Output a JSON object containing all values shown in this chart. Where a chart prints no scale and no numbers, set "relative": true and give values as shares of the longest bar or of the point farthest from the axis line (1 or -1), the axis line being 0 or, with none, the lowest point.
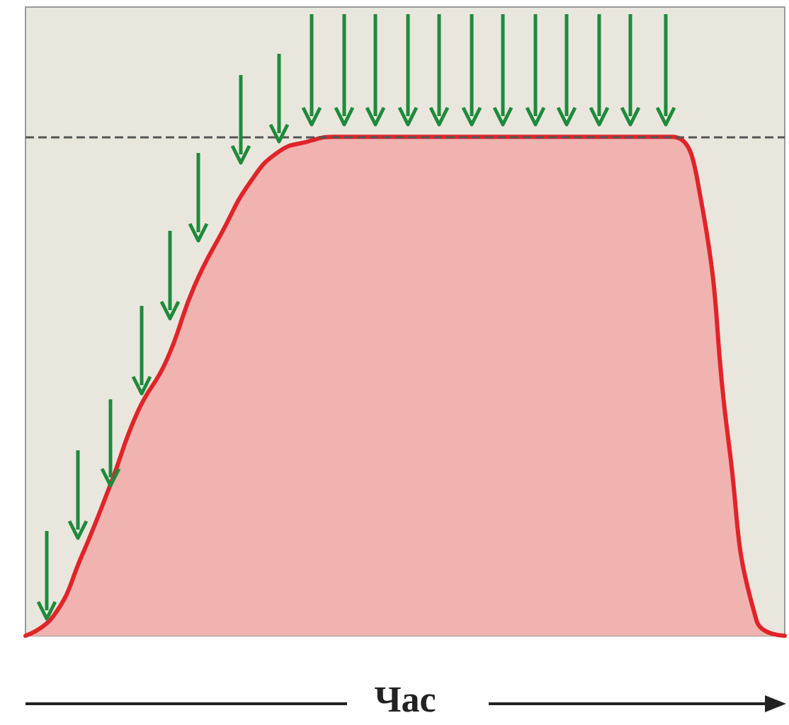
{
  "chart_data": {
    "type": "area",
    "xlabel": "Час",
    "relative": true,
    "grid": false,
    "marker": "none",
    "line_style": "solid",
    "categories": [
      null,
      null,
      null,
      null,
      null,
      null,
      null,
      null,
      null,
      null,
      null,
      null,
      null,
      null,
      null,
      null,
      null,
      null,
      null,
      null,
      null,
      null,
      null,
      null,
      null,
      null,
      null,
      null
    ],
    "series": [
      {
        "color": "#e0242a",
        "values": [
          0,
          0.04,
          0.16,
          0.3,
          0.45,
          0.55,
          0.7,
          0.81,
          0.91,
          0.97,
          0.99,
          1,
          1,
          1,
          1,
          1,
          1,
          1,
          1,
          1,
          1,
          1,
          1,
          1,
          0.88,
          0.39,
          0.03,
          0
        ]
      }
    ],
    "ref_lines": [
      {
        "axis": "y",
        "value": 1,
        "color": "#555555",
        "line_style": "dashed"
      }
    ]
  }
}
